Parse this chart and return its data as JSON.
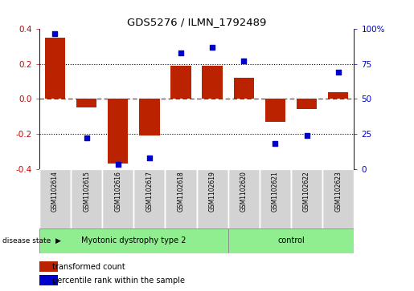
{
  "title": "GDS5276 / ILMN_1792489",
  "samples": [
    "GSM1102614",
    "GSM1102615",
    "GSM1102616",
    "GSM1102617",
    "GSM1102618",
    "GSM1102619",
    "GSM1102620",
    "GSM1102621",
    "GSM1102622",
    "GSM1102623"
  ],
  "transformed_count": [
    0.35,
    -0.05,
    -0.37,
    -0.21,
    0.19,
    0.19,
    0.12,
    -0.13,
    -0.06,
    0.04
  ],
  "percentile_rank": [
    97,
    22,
    3,
    8,
    83,
    87,
    77,
    18,
    24,
    69
  ],
  "bar_color": "#bb2200",
  "dot_color": "#0000cc",
  "ylim_left": [
    -0.4,
    0.4
  ],
  "ylim_right": [
    0,
    100
  ],
  "yticks_left": [
    -0.4,
    -0.2,
    0.0,
    0.2,
    0.4
  ],
  "yticks_right": [
    0,
    25,
    50,
    75,
    100
  ],
  "ytick_labels_right": [
    "0",
    "25",
    "50",
    "75",
    "100%"
  ],
  "disease_groups": [
    {
      "label": "Myotonic dystrophy type 2",
      "start": 0,
      "end": 6
    },
    {
      "label": "control",
      "start": 6,
      "end": 10
    }
  ],
  "group_color": "#90ee90",
  "disease_state_label": "disease state",
  "background_color": "#ffffff",
  "zero_line_color": "#cc0000",
  "tick_label_color_left": "#cc0000",
  "tick_label_color_right": "#0000cc",
  "box_color": "#d3d3d3",
  "legend_labels": [
    "transformed count",
    "percentile rank within the sample"
  ],
  "legend_colors": [
    "#bb2200",
    "#0000cc"
  ]
}
